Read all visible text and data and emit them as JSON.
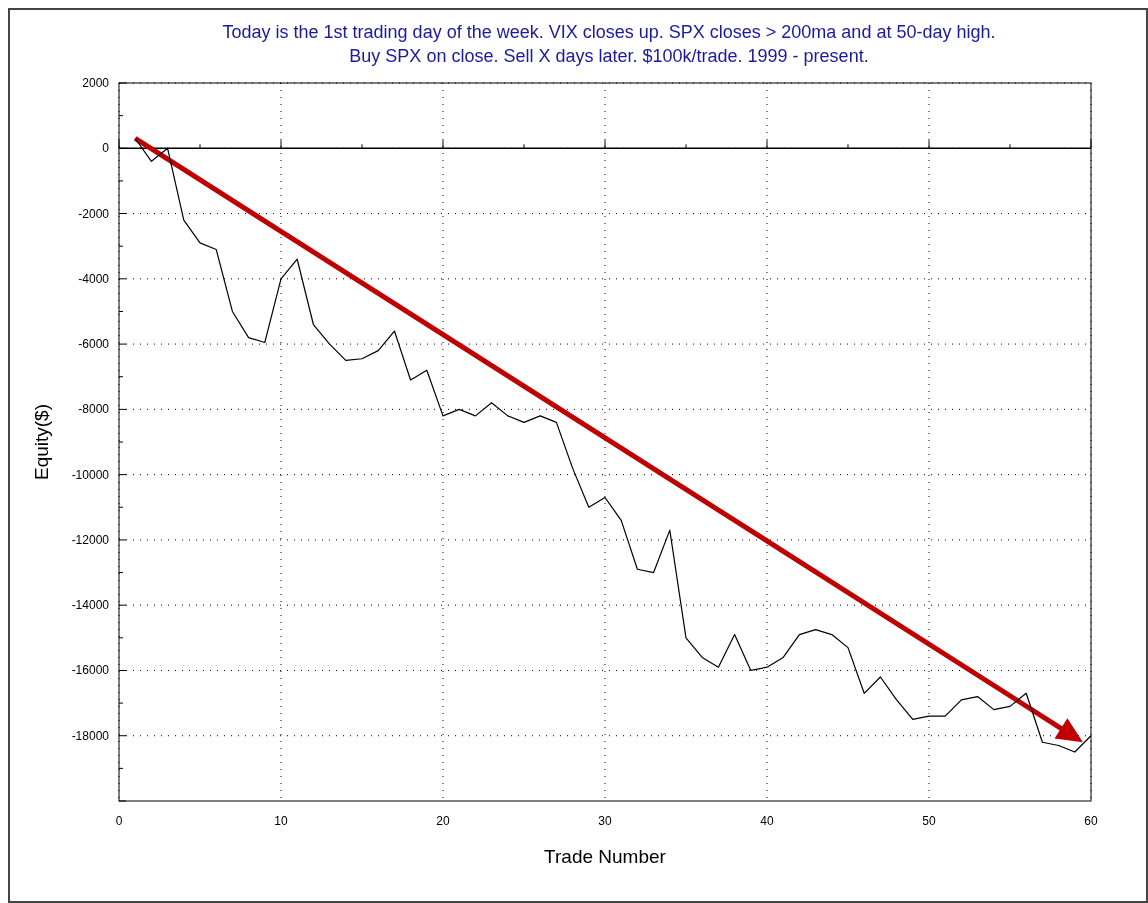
{
  "chart_data": {
    "type": "line",
    "title": "Today is the 1st trading day of the week. VIX closes up. SPX closes > 200ma and at 50-day high.",
    "subtitle": "Buy SPX on close. Sell X days later. $100k/trade. 1999 - present.",
    "xlabel": "Trade Number",
    "ylabel": "Equity($)",
    "x": [
      1,
      2,
      3,
      4,
      5,
      6,
      7,
      8,
      9,
      10,
      11,
      12,
      13,
      14,
      15,
      16,
      17,
      18,
      19,
      20,
      21,
      22,
      23,
      24,
      25,
      26,
      27,
      28,
      29,
      30,
      31,
      32,
      33,
      34,
      35,
      36,
      37,
      38,
      39,
      40,
      41,
      42,
      43,
      44,
      45,
      46,
      47,
      48,
      49,
      50,
      51,
      52,
      53,
      54,
      55,
      56,
      57,
      58,
      59,
      60
    ],
    "series": [
      {
        "color": "#000000",
        "values": [
          300,
          -400,
          0,
          -2200,
          -2900,
          -3100,
          -5000,
          -5800,
          -5950,
          -4000,
          -3400,
          -5400,
          -6000,
          -6500,
          -6450,
          -6200,
          -5600,
          -7100,
          -6800,
          -8200,
          -8000,
          -8200,
          -7800,
          -8200,
          -8400,
          -8200,
          -8400,
          -9800,
          -11000,
          -10700,
          -11400,
          -12900,
          -13000,
          -11700,
          -15000,
          -15600,
          -15900,
          -14900,
          -16000,
          -15900,
          -15600,
          -14900,
          -14750,
          -14900,
          -15300,
          -16700,
          -16200,
          -16900,
          -17500,
          -17400,
          -17400,
          -16900,
          -16800,
          -17200,
          -17100,
          -16700,
          -18200,
          -18300,
          -18500,
          -18000
        ]
      }
    ],
    "xlim": [
      0,
      60
    ],
    "xticks": [
      0,
      10,
      20,
      30,
      40,
      50,
      60
    ],
    "ylim": [
      -20000,
      2000
    ],
    "yticks": [
      -18000,
      -16000,
      -14000,
      -12000,
      -10000,
      -8000,
      -6000,
      -4000,
      -2000,
      0,
      2000
    ],
    "ref_lines": [
      {
        "axis": "y",
        "value": 0,
        "color": "#000000",
        "line_style": "solid"
      }
    ],
    "grid": true,
    "marker": "none",
    "line_style": "solid"
  }
}
